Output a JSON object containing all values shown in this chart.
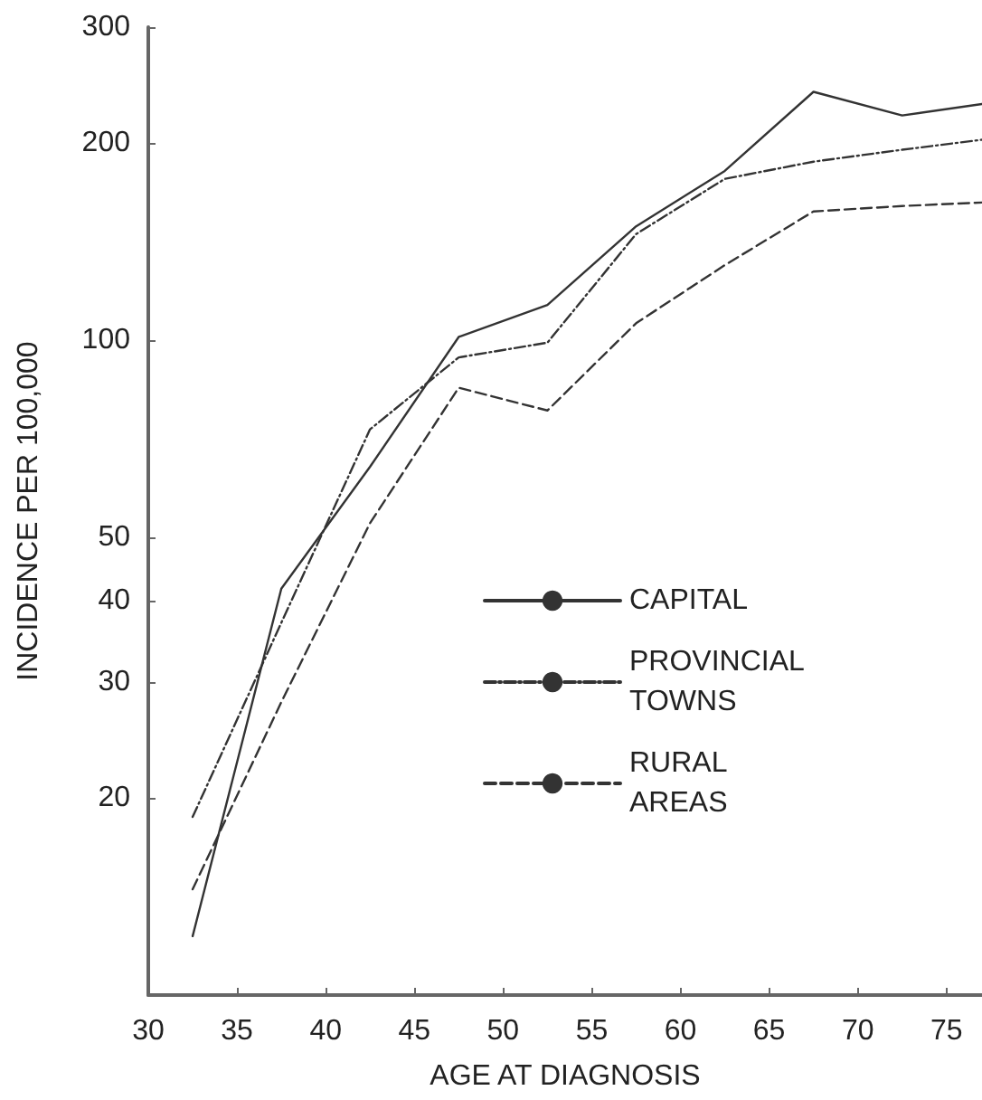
{
  "chart_data": {
    "type": "line",
    "xlabel": "AGE AT DIAGNOSIS",
    "ylabel": "INCIDENCE PER 100,000",
    "x": [
      32.5,
      37.5,
      42.5,
      47.5,
      52.5,
      57.5,
      62.5,
      67.5,
      72.5,
      77
    ],
    "series": [
      {
        "name": "CAPITAL",
        "color": "#333333",
        "line_style": "solid",
        "values": [
          12.3,
          41.7,
          64,
          101,
          113,
          149,
          181,
          239,
          220,
          229
        ]
      },
      {
        "name": "PROVINCIAL TOWNS",
        "color": "#333333",
        "line_style": "dashdot",
        "values": [
          18.7,
          37,
          73,
          94,
          99,
          145,
          176,
          187,
          195,
          202
        ]
      },
      {
        "name": "RURAL AREAS",
        "color": "#333333",
        "line_style": "dashed",
        "values": [
          14.5,
          28,
          52.5,
          84.5,
          78,
          106,
          130,
          157,
          160,
          162
        ]
      }
    ],
    "log": "y",
    "xlim": [
      30,
      77
    ],
    "ylim": [
      10,
      300
    ],
    "xticks": [
      30,
      35,
      40,
      45,
      50,
      55,
      60,
      65,
      70,
      75
    ],
    "yticks": [
      20,
      30,
      40,
      50,
      100,
      200,
      300
    ],
    "grid": false,
    "legend": "right",
    "marker": "none"
  }
}
